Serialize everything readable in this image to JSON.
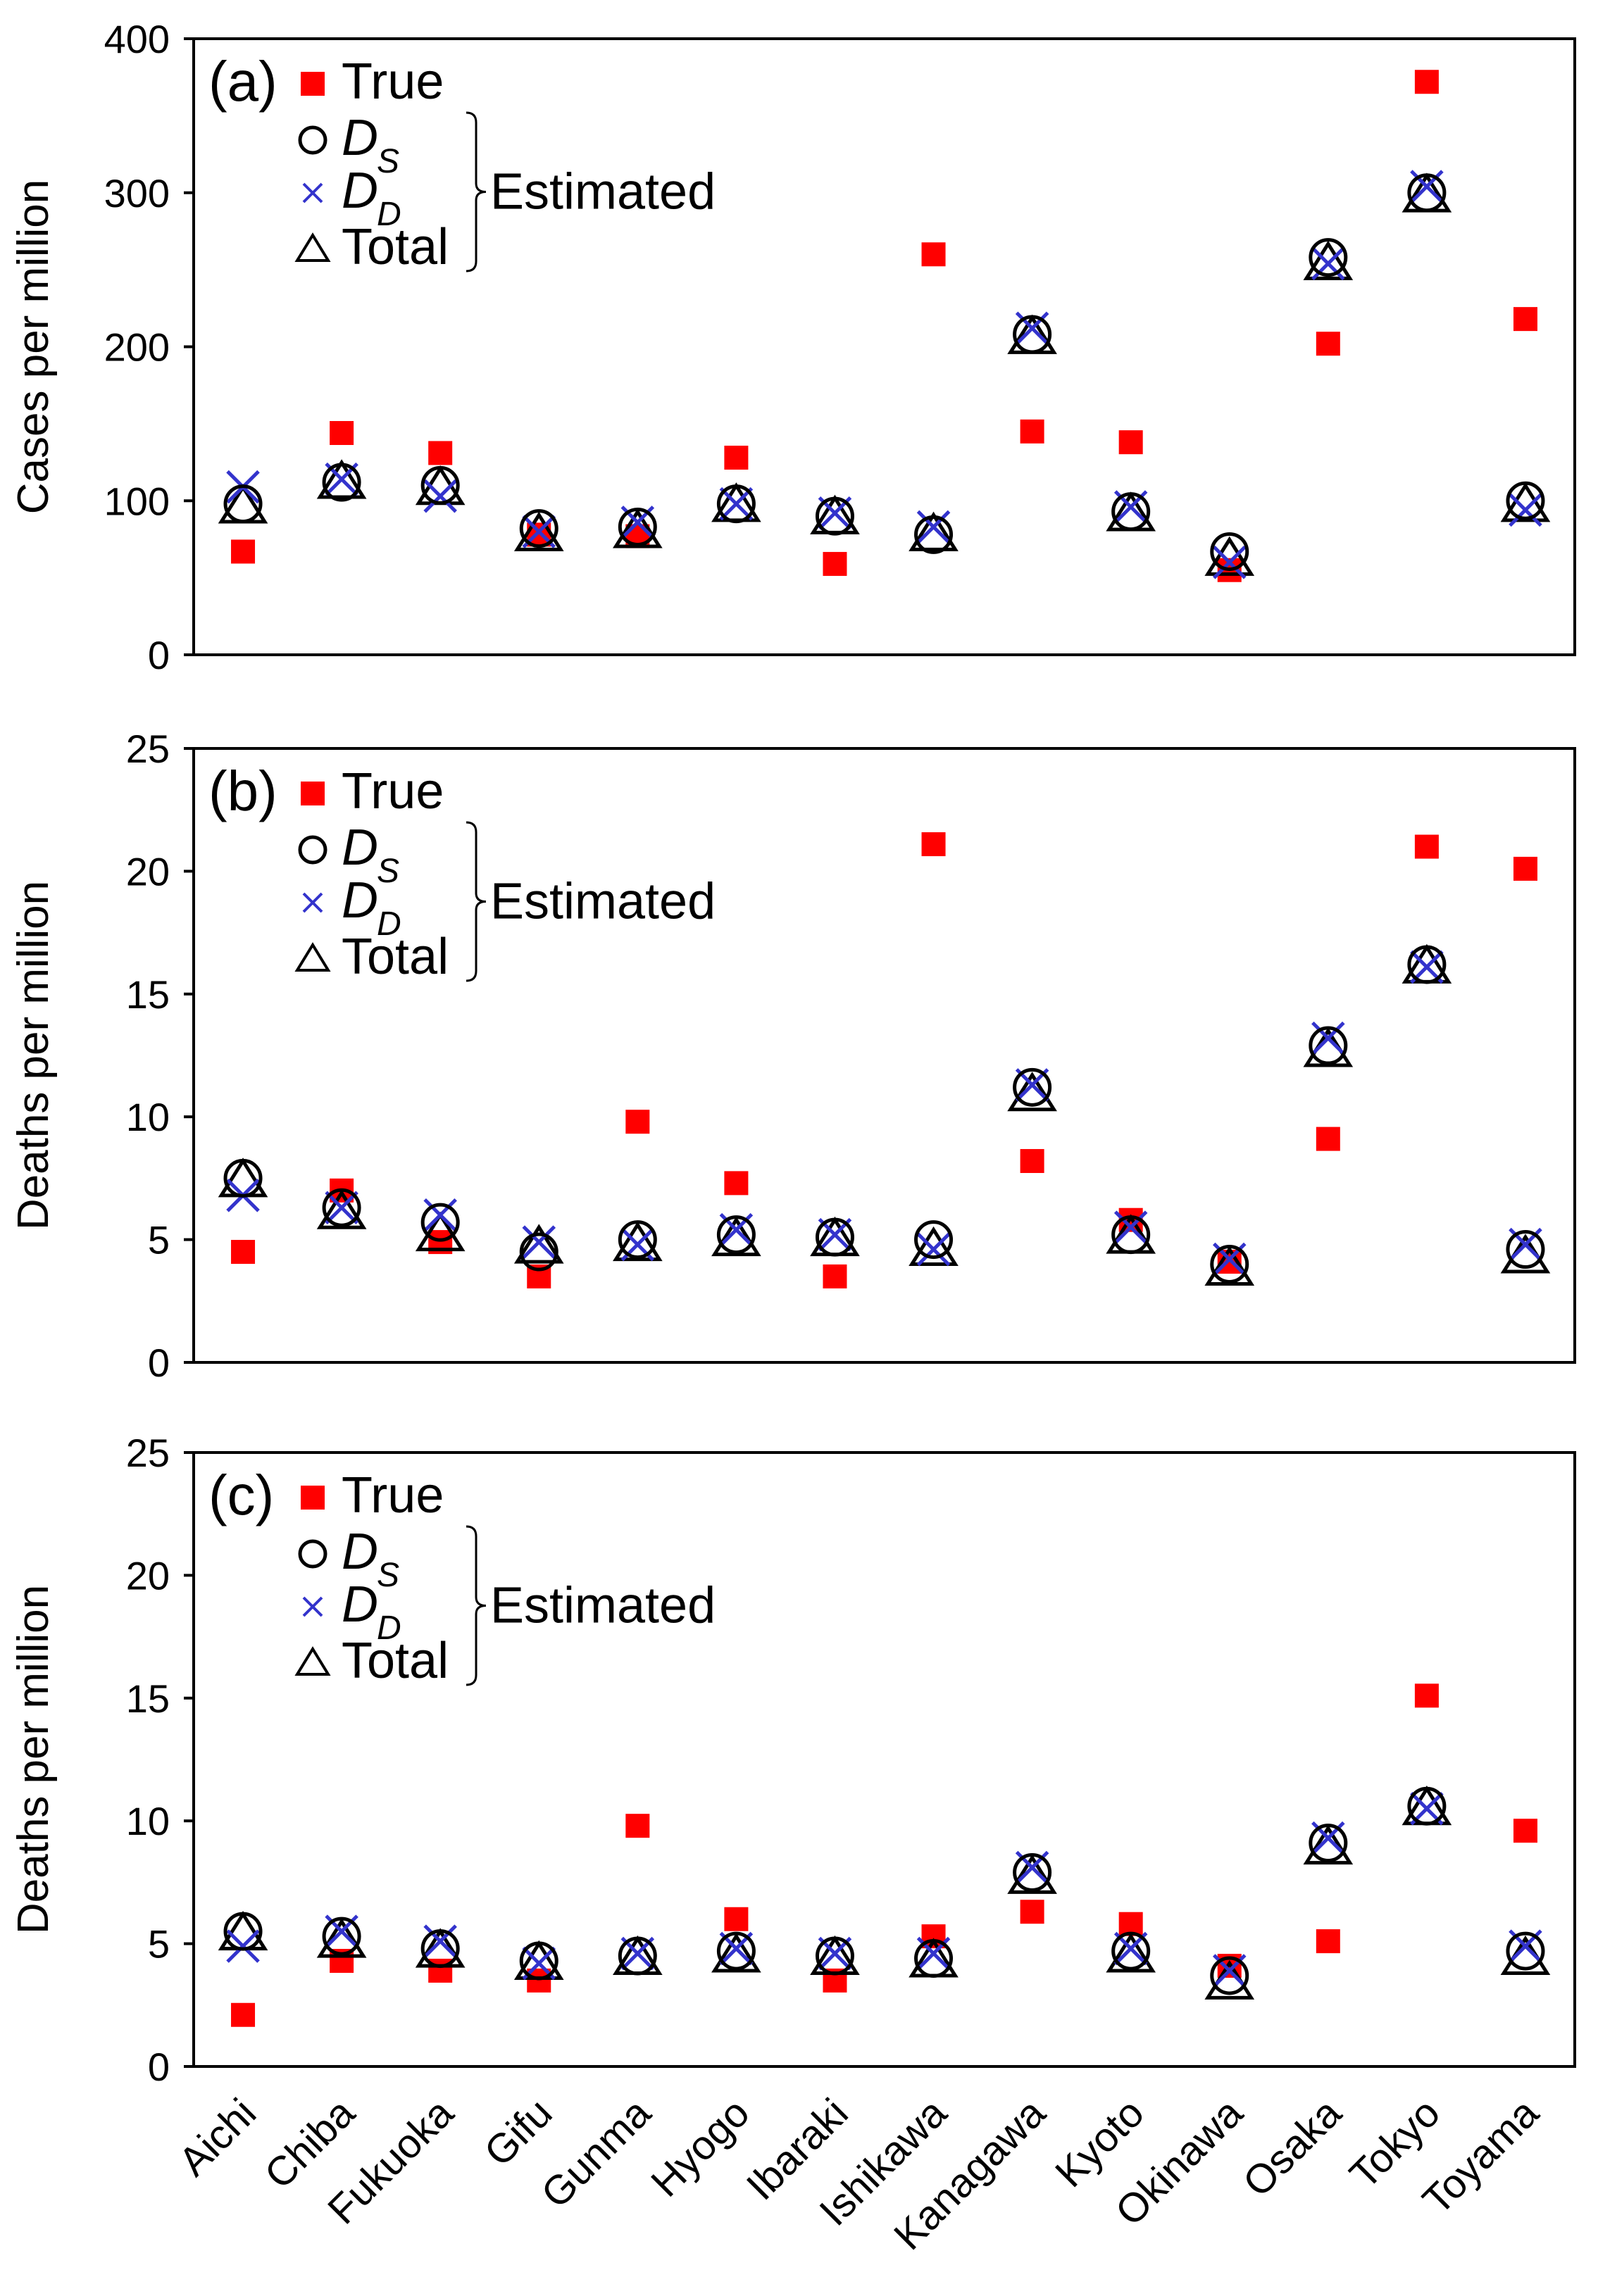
{
  "chart_data": [
    {
      "type": "scatter",
      "panel_label": "(a)",
      "ylabel": "Cases per million",
      "ylim": [
        0,
        400
      ],
      "yticks": [
        0,
        100,
        200,
        300,
        400
      ],
      "categories": [
        "Aichi",
        "Chiba",
        "Fukuoka",
        "Gifu",
        "Gunma",
        "Hyogo",
        "Ibaraki",
        "Ishikawa",
        "Kanagawa",
        "Kyoto",
        "Okinawa",
        "Osaka",
        "Tokyo",
        "Toyama"
      ],
      "series": [
        {
          "name": "True",
          "marker": "square",
          "values": [
            67,
            144,
            131,
            78,
            77,
            128,
            59,
            260,
            145,
            138,
            55,
            202,
            372,
            218
          ]
        },
        {
          "name": "DS",
          "marker": "circle",
          "values": [
            98,
            112,
            110,
            82,
            83,
            98,
            90,
            78,
            208,
            93,
            67,
            258,
            300,
            100
          ]
        },
        {
          "name": "DD",
          "marker": "x",
          "values": [
            109,
            114,
            103,
            80,
            86,
            98,
            92,
            83,
            212,
            96,
            60,
            254,
            304,
            94
          ]
        },
        {
          "name": "Total",
          "marker": "triangle",
          "values": [
            96,
            112,
            108,
            78,
            80,
            97,
            89,
            78,
            206,
            91,
            62,
            254,
            298,
            97
          ]
        }
      ]
    },
    {
      "type": "scatter",
      "panel_label": "(b)",
      "ylabel": "Deaths per million",
      "ylim": [
        0,
        25
      ],
      "yticks": [
        0,
        5,
        10,
        15,
        20,
        25
      ],
      "categories": [
        "Aichi",
        "Chiba",
        "Fukuoka",
        "Gifu",
        "Gunma",
        "Hyogo",
        "Ibaraki",
        "Ishikawa",
        "Kanagawa",
        "Kyoto",
        "Okinawa",
        "Osaka",
        "Tokyo",
        "Toyama"
      ],
      "series": [
        {
          "name": "True",
          "marker": "square",
          "values": [
            4.5,
            7.0,
            4.9,
            3.5,
            9.8,
            7.3,
            3.5,
            21.1,
            8.2,
            5.8,
            4.1,
            9.1,
            21.0,
            20.1
          ]
        },
        {
          "name": "DS",
          "marker": "circle",
          "values": [
            7.5,
            6.3,
            5.7,
            4.5,
            5.0,
            5.2,
            5.1,
            5.0,
            11.2,
            5.2,
            4.0,
            12.9,
            16.2,
            4.6
          ]
        },
        {
          "name": "DD",
          "marker": "x",
          "values": [
            6.8,
            6.3,
            6.0,
            4.9,
            4.8,
            5.4,
            5.2,
            4.6,
            11.3,
            5.5,
            4.2,
            13.2,
            16.1,
            4.8
          ]
        },
        {
          "name": "Total",
          "marker": "triangle",
          "values": [
            7.4,
            6.1,
            5.2,
            4.7,
            4.8,
            5.0,
            5.0,
            4.6,
            10.9,
            5.1,
            3.8,
            12.7,
            16.1,
            4.3
          ]
        }
      ]
    },
    {
      "type": "scatter",
      "panel_label": "(c)",
      "ylabel": "Deaths per million",
      "ylim": [
        0,
        25
      ],
      "yticks": [
        0,
        5,
        10,
        15,
        20,
        25
      ],
      "categories": [
        "Aichi",
        "Chiba",
        "Fukuoka",
        "Gifu",
        "Gunma",
        "Hyogo",
        "Ibaraki",
        "Ishikawa",
        "Kanagawa",
        "Kyoto",
        "Okinawa",
        "Osaka",
        "Tokyo",
        "Toyama"
      ],
      "series": [
        {
          "name": "True",
          "marker": "square",
          "values": [
            2.1,
            4.3,
            3.9,
            3.5,
            9.8,
            6.0,
            3.5,
            5.3,
            6.3,
            5.8,
            4.1,
            5.1,
            15.1,
            9.6
          ]
        },
        {
          "name": "DS",
          "marker": "circle",
          "values": [
            5.5,
            5.3,
            4.8,
            4.3,
            4.5,
            4.7,
            4.5,
            4.4,
            7.9,
            4.7,
            3.7,
            9.1,
            10.6,
            4.7
          ]
        },
        {
          "name": "DD",
          "marker": "x",
          "values": [
            4.9,
            5.5,
            5.1,
            4.2,
            4.6,
            4.8,
            4.6,
            4.6,
            8.1,
            4.8,
            3.9,
            9.3,
            10.5,
            4.9
          ]
        },
        {
          "name": "Total",
          "marker": "triangle",
          "values": [
            5.4,
            5.1,
            4.7,
            4.2,
            4.4,
            4.5,
            4.4,
            4.3,
            7.7,
            4.5,
            3.4,
            8.9,
            10.5,
            4.4
          ]
        }
      ]
    }
  ],
  "legend": {
    "true_label": "True",
    "ds_main": "D",
    "ds_sub": "S",
    "dd_main": "D",
    "dd_sub": "D",
    "total_label": "Total",
    "estimated_label": "Estimated"
  },
  "colors": {
    "true": "#ff0000",
    "dd": "#3333cc",
    "outline": "#000000"
  }
}
